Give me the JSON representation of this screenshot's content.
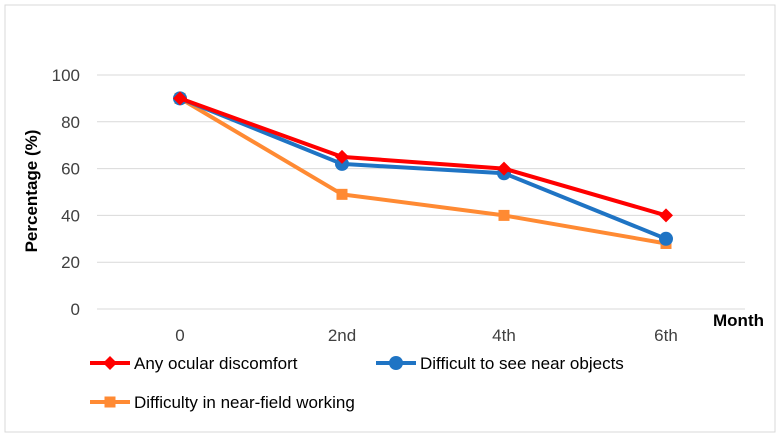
{
  "chart_data": {
    "type": "line",
    "title": "",
    "xlabel": "Month",
    "ylabel": "Percentage (%)",
    "categories": [
      "0",
      "2nd",
      "4th",
      "6th"
    ],
    "ylim": [
      0,
      100
    ],
    "yticks": [
      0,
      20,
      40,
      60,
      80,
      100
    ],
    "grid": "horizontal",
    "legend_position": "bottom",
    "series": [
      {
        "name": "Any ocular discomfort",
        "values": [
          90,
          65,
          60,
          40
        ],
        "color": "#ff0000",
        "marker": "diamond"
      },
      {
        "name": "Difficult to see near objects",
        "values": [
          90,
          62,
          58,
          30
        ],
        "color": "#1f74c4",
        "marker": "circle"
      },
      {
        "name": "Difficulty in near-field working",
        "values": [
          90,
          49,
          40,
          28
        ],
        "color": "#ff8a33",
        "marker": "square"
      }
    ]
  }
}
